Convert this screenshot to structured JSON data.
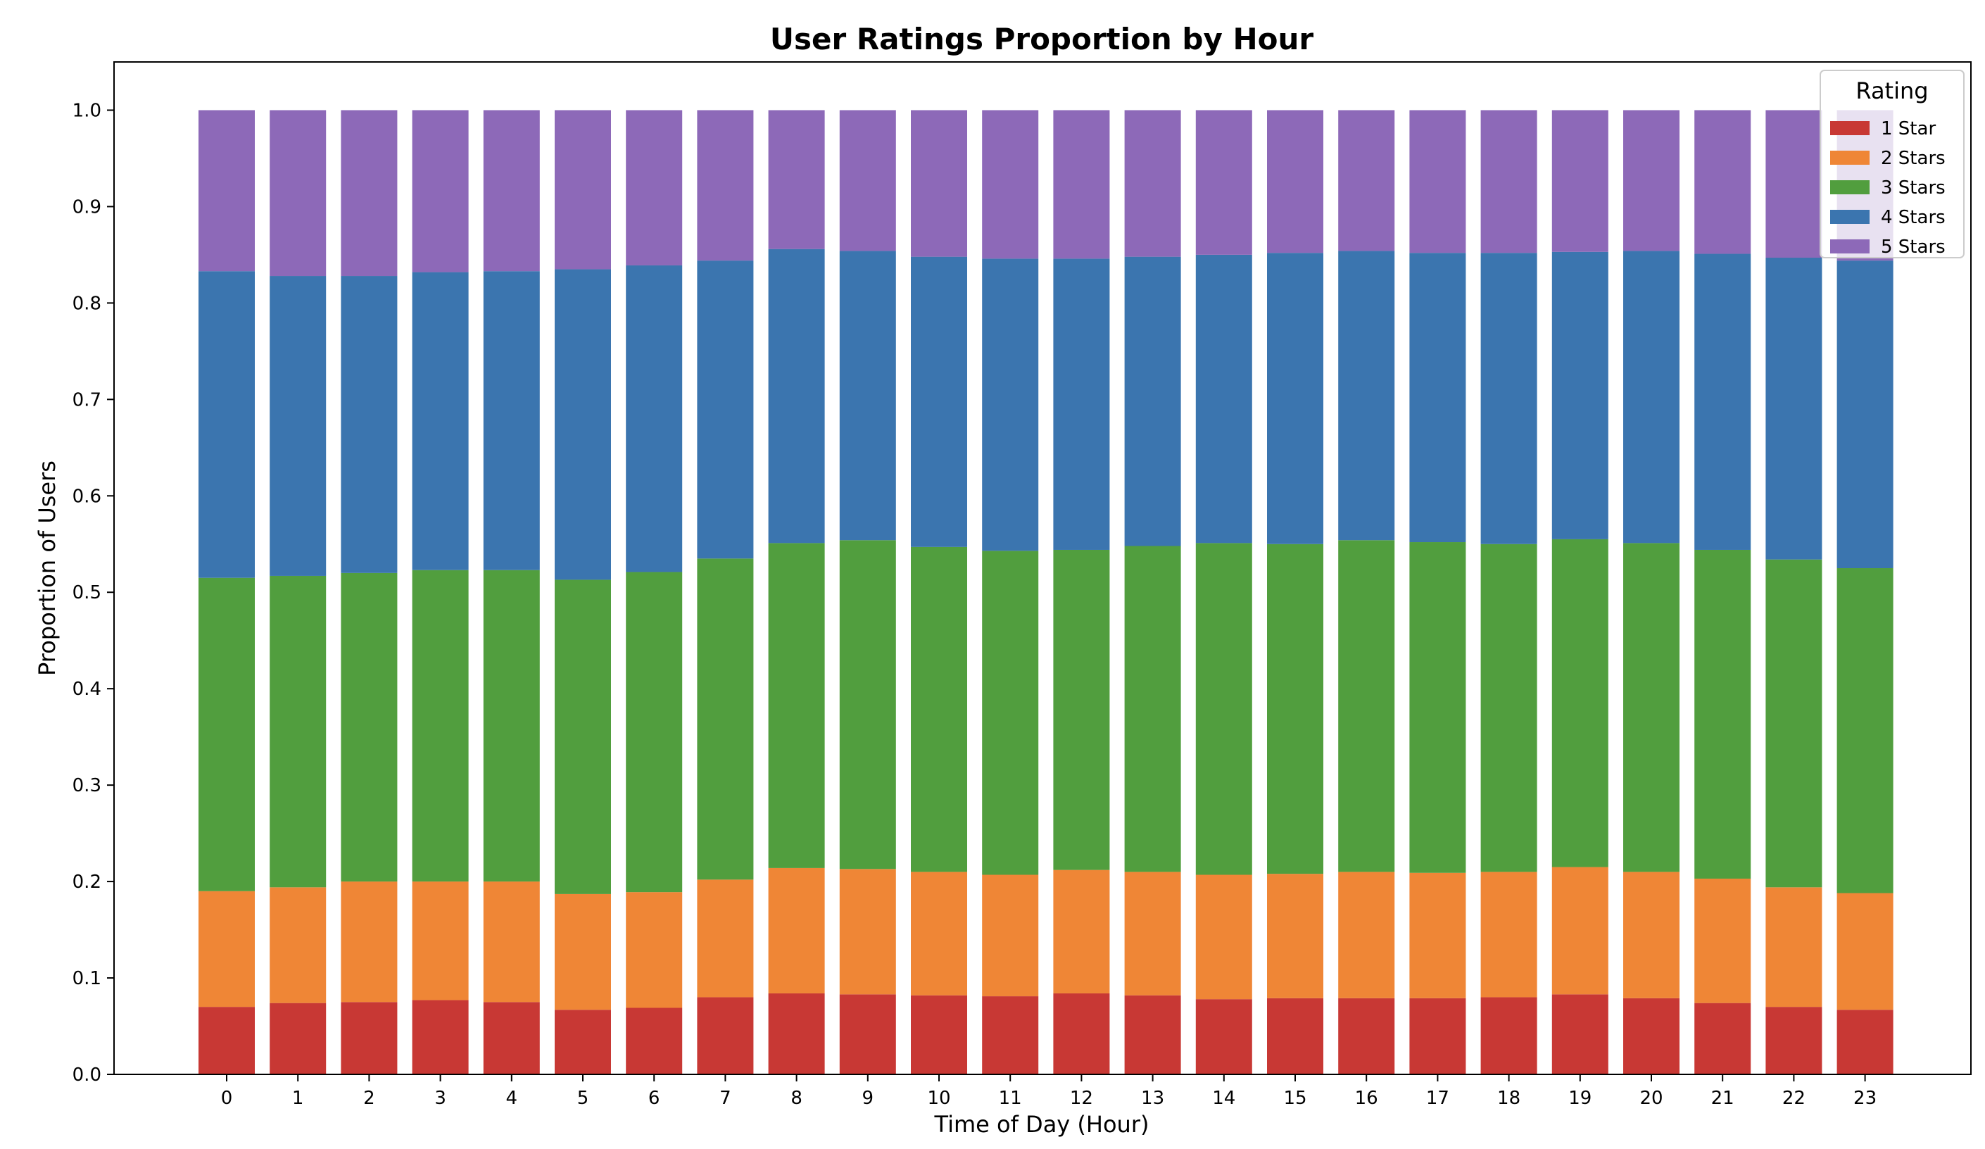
{
  "chart_data": {
    "type": "bar",
    "stacked": true,
    "title": "User Ratings Proportion by Hour",
    "xlabel": "Time of Day (Hour)",
    "ylabel": "Proportion of Users",
    "ylim": [
      0,
      1.05
    ],
    "yticks": [
      "0.0",
      "0.1",
      "0.2",
      "0.3",
      "0.4",
      "0.5",
      "0.6",
      "0.7",
      "0.8",
      "0.9",
      "1.0"
    ],
    "grid": false,
    "categories": [
      "0",
      "1",
      "2",
      "3",
      "4",
      "5",
      "6",
      "7",
      "8",
      "9",
      "10",
      "11",
      "12",
      "13",
      "14",
      "15",
      "16",
      "17",
      "18",
      "19",
      "20",
      "21",
      "22",
      "23"
    ],
    "legend": {
      "title": "Rating",
      "position": "top-right"
    },
    "series": [
      {
        "name": "1 Star",
        "color": "#c83834",
        "values": [
          0.07,
          0.074,
          0.075,
          0.077,
          0.075,
          0.067,
          0.069,
          0.08,
          0.084,
          0.083,
          0.082,
          0.081,
          0.084,
          0.082,
          0.078,
          0.079,
          0.079,
          0.079,
          0.08,
          0.083,
          0.079,
          0.074,
          0.07,
          0.067
        ]
      },
      {
        "name": "2 Stars",
        "color": "#ef8636",
        "values": [
          0.12,
          0.12,
          0.125,
          0.123,
          0.125,
          0.12,
          0.12,
          0.122,
          0.13,
          0.13,
          0.128,
          0.126,
          0.128,
          0.128,
          0.129,
          0.129,
          0.131,
          0.13,
          0.13,
          0.132,
          0.131,
          0.129,
          0.124,
          0.121
        ]
      },
      {
        "name": "3 Stars",
        "color": "#519e3e",
        "values": [
          0.325,
          0.323,
          0.32,
          0.323,
          0.323,
          0.326,
          0.332,
          0.333,
          0.337,
          0.341,
          0.337,
          0.336,
          0.332,
          0.338,
          0.344,
          0.342,
          0.344,
          0.343,
          0.34,
          0.34,
          0.341,
          0.341,
          0.34,
          0.337
        ]
      },
      {
        "name": "4 Stars",
        "color": "#3b75af",
        "values": [
          0.318,
          0.311,
          0.308,
          0.309,
          0.31,
          0.322,
          0.318,
          0.309,
          0.305,
          0.3,
          0.301,
          0.303,
          0.302,
          0.3,
          0.299,
          0.302,
          0.3,
          0.3,
          0.302,
          0.298,
          0.303,
          0.307,
          0.313,
          0.319
        ]
      },
      {
        "name": "5 Stars",
        "color": "#8d69b8",
        "values": [
          0.167,
          0.172,
          0.172,
          0.168,
          0.167,
          0.165,
          0.161,
          0.156,
          0.144,
          0.146,
          0.152,
          0.154,
          0.154,
          0.152,
          0.15,
          0.148,
          0.146,
          0.148,
          0.148,
          0.147,
          0.146,
          0.149,
          0.153,
          0.156
        ]
      }
    ]
  }
}
